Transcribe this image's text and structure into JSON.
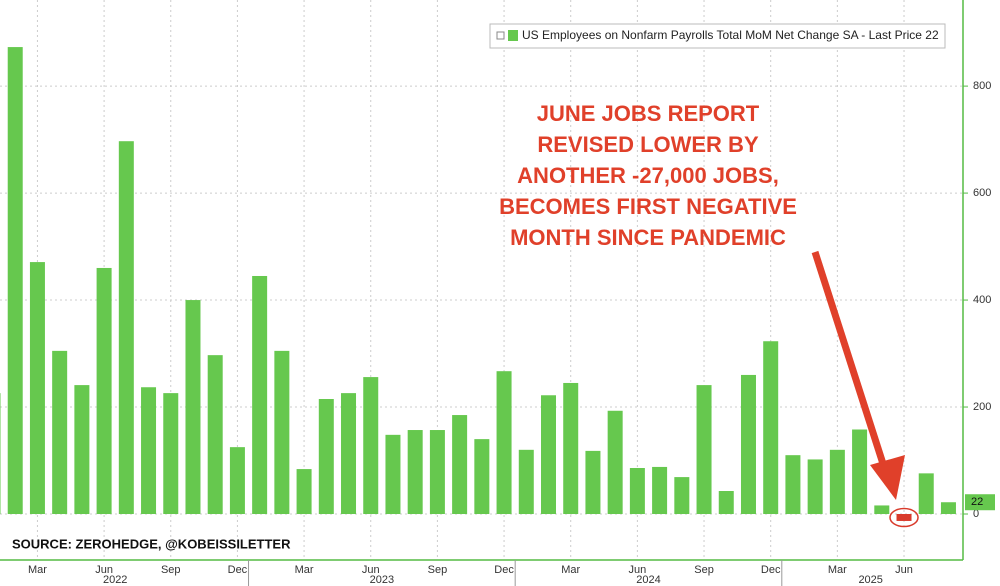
{
  "chart_data": {
    "type": "bar",
    "legend": "US Employees on Nonfarm Payrolls Total MoM Net Change SA - Last Price 22",
    "annotation": [
      "JUNE JOBS REPORT",
      "REVISED LOWER BY",
      "ANOTHER -27,000 JOBS,",
      "BECOMES FIRST NEGATIVE",
      "MONTH SINCE PANDEMIC"
    ],
    "source": "SOURCE: ZEROHEDGE, @KOBEISSILETTER",
    "categories": [
      null,
      null,
      "Mar",
      null,
      null,
      "Jun",
      null,
      null,
      "Sep",
      null,
      null,
      "Dec",
      null,
      null,
      "Mar",
      null,
      null,
      "Jun",
      null,
      null,
      "Sep",
      null,
      null,
      "Dec",
      null,
      null,
      "Mar",
      null,
      null,
      "Jun",
      null,
      null,
      "Sep",
      null,
      null,
      "Dec",
      null,
      null,
      "Mar",
      null,
      null,
      "Jun",
      null,
      null
    ],
    "years": [
      "2022",
      "2023",
      "2024",
      "2025"
    ],
    "values": [
      226,
      873,
      471,
      305,
      241,
      460,
      697,
      237,
      226,
      400,
      297,
      125,
      445,
      305,
      84,
      215,
      226,
      256,
      148,
      157,
      157,
      185,
      140,
      267,
      120,
      222,
      245,
      118,
      193,
      86,
      88,
      69,
      241,
      43,
      260,
      323,
      110,
      102,
      120,
      158,
      16,
      -13,
      76,
      22
    ],
    "color": "#66c84e",
    "negative_color": "#d93a2b",
    "ylim": [
      -86,
      961
    ],
    "yticks": [
      0,
      200,
      400,
      600,
      800
    ],
    "grid": true
  }
}
